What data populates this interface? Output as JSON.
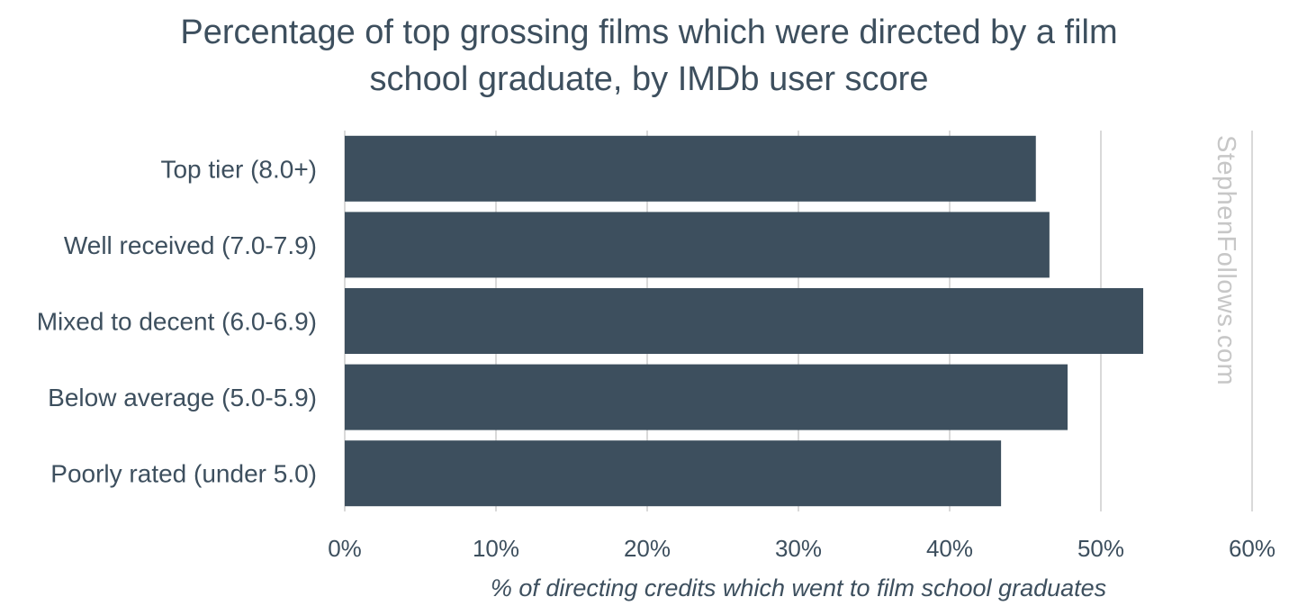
{
  "chart_data": {
    "type": "bar",
    "orientation": "horizontal",
    "title": "Percentage of top grossing films which were directed by a film school graduate, by IMDb user score",
    "title_lines": [
      "Percentage of top grossing films which were directed by a film",
      "school graduate, by IMDb user score"
    ],
    "categories": [
      "Top tier (8.0+)",
      "Well received (7.0-7.9)",
      "Mixed to decent (6.0-6.9)",
      "Below average (5.0-5.9)",
      "Poorly rated (under 5.0)"
    ],
    "values": [
      45.7,
      46.6,
      52.8,
      47.8,
      43.4
    ],
    "xlabel": "% of directing credits which went to film school graduates",
    "ylabel": "",
    "xlim": [
      0,
      60
    ],
    "xticks": [
      0,
      10,
      20,
      30,
      40,
      50,
      60
    ],
    "xtick_labels": [
      "0%",
      "10%",
      "20%",
      "30%",
      "40%",
      "50%",
      "60%"
    ],
    "grid": "vertical",
    "bar_color": "#3d4f5e",
    "grid_color": "#d9d9d9",
    "text_color": "#3d4f5e",
    "watermark": "StephenFollows.com",
    "watermark_color": "#c7c7c7"
  }
}
